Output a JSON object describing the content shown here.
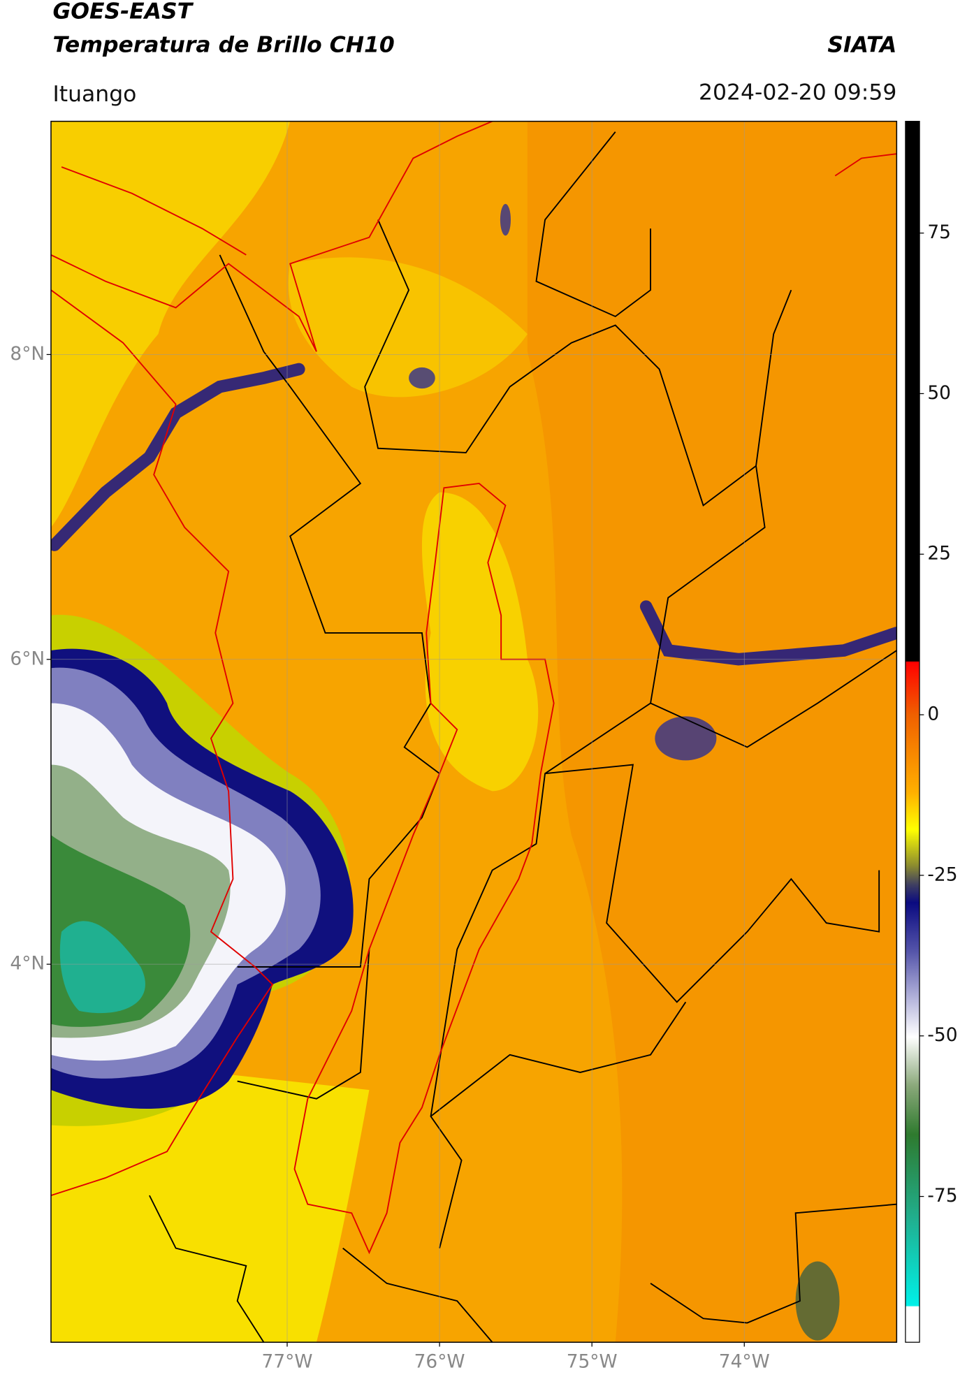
{
  "header": {
    "title": "GOES-EAST",
    "subtitle": "Temperatura de Brillo CH10",
    "agency": "SIATA",
    "region": "Ituango",
    "timestamp": "2024-02-20 09:59"
  },
  "map": {
    "xlim": [
      -78.55,
      -73.0
    ],
    "ylim": [
      1.52,
      9.53
    ],
    "xticks": [
      {
        "value": -77,
        "label": "77°W"
      },
      {
        "value": -76,
        "label": "76°W"
      },
      {
        "value": -75,
        "label": "75°W"
      },
      {
        "value": -74,
        "label": "74°W"
      }
    ],
    "yticks": [
      {
        "value": 8,
        "label": "8°N"
      },
      {
        "value": 6,
        "label": "6°N"
      },
      {
        "value": 4,
        "label": "4°N"
      }
    ]
  },
  "colorbar": {
    "ylim": [
      -97.7,
      92.4
    ],
    "yticks": [
      75,
      50,
      25,
      0,
      -25,
      -50,
      -75
    ]
  }
}
